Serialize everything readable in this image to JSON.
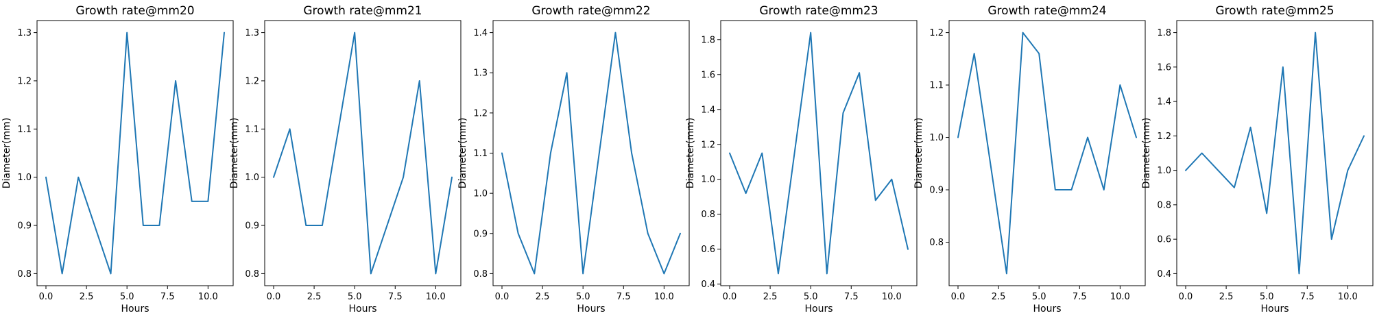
{
  "chart_data": [
    {
      "type": "line",
      "title": "Growth rate@mm20",
      "xlabel": "Hours",
      "ylabel": "Diameter(mm)",
      "xlim": [
        -0.55,
        11.55
      ],
      "ylim": [
        0.775,
        1.325
      ],
      "xticks": [
        0,
        2.5,
        5,
        7.5,
        10
      ],
      "xtick_labels": [
        "0.0",
        "2.5",
        "5.0",
        "7.5",
        "10.0"
      ],
      "yticks": [
        0.8,
        0.9,
        1.0,
        1.1,
        1.2,
        1.3
      ],
      "ytick_labels": [
        "0.8",
        "0.9",
        "1.0",
        "1.1",
        "1.2",
        "1.3"
      ],
      "x": [
        0,
        1,
        2,
        3,
        4,
        5,
        6,
        7,
        8,
        9,
        10,
        11
      ],
      "values": [
        1.0,
        0.8,
        1.0,
        0.9,
        0.8,
        1.3,
        0.9,
        0.9,
        1.2,
        0.95,
        0.95,
        1.3
      ],
      "grid": false,
      "color": "#1f77b4"
    },
    {
      "type": "line",
      "title": "Growth rate@mm21",
      "xlabel": "Hours",
      "ylabel": "Diameter(mm)",
      "xlim": [
        -0.55,
        11.55
      ],
      "ylim": [
        0.775,
        1.325
      ],
      "xticks": [
        0,
        2.5,
        5,
        7.5,
        10
      ],
      "xtick_labels": [
        "0.0",
        "2.5",
        "5.0",
        "7.5",
        "10.0"
      ],
      "yticks": [
        0.8,
        0.9,
        1.0,
        1.1,
        1.2,
        1.3
      ],
      "ytick_labels": [
        "0.8",
        "0.9",
        "1.0",
        "1.1",
        "1.2",
        "1.3"
      ],
      "x": [
        0,
        1,
        2,
        3,
        4,
        5,
        6,
        7,
        8,
        9,
        10,
        11
      ],
      "values": [
        1.0,
        1.1,
        0.9,
        0.9,
        1.1,
        1.3,
        0.8,
        0.9,
        1.0,
        1.2,
        0.8,
        1.0
      ],
      "grid": false,
      "color": "#1f77b4"
    },
    {
      "type": "line",
      "title": "Growth rate@mm22",
      "xlabel": "Hours",
      "ylabel": "Diameter(mm)",
      "xlim": [
        -0.55,
        11.55
      ],
      "ylim": [
        0.77,
        1.43
      ],
      "xticks": [
        0,
        2.5,
        5,
        7.5,
        10
      ],
      "xtick_labels": [
        "0.0",
        "2.5",
        "5.0",
        "7.5",
        "10.0"
      ],
      "yticks": [
        0.8,
        0.9,
        1.0,
        1.1,
        1.2,
        1.3,
        1.4
      ],
      "ytick_labels": [
        "0.8",
        "0.9",
        "1.0",
        "1.1",
        "1.2",
        "1.3",
        "1.4"
      ],
      "x": [
        0,
        1,
        2,
        3,
        4,
        5,
        6,
        7,
        8,
        9,
        10,
        11
      ],
      "values": [
        1.1,
        0.9,
        0.8,
        1.1,
        1.3,
        0.8,
        1.1,
        1.4,
        1.1,
        0.9,
        0.8,
        0.9
      ],
      "grid": false,
      "color": "#1f77b4"
    },
    {
      "type": "line",
      "title": "Growth rate@mm23",
      "xlabel": "Hours",
      "ylabel": "Diameter(mm)",
      "xlim": [
        -0.55,
        11.55
      ],
      "ylim": [
        0.391,
        1.909
      ],
      "xticks": [
        0,
        2.5,
        5,
        7.5,
        10
      ],
      "xtick_labels": [
        "0.0",
        "2.5",
        "5.0",
        "7.5",
        "10.0"
      ],
      "yticks": [
        0.4,
        0.6,
        0.8,
        1.0,
        1.2,
        1.4,
        1.6,
        1.8
      ],
      "ytick_labels": [
        "0.4",
        "0.6",
        "0.8",
        "1.0",
        "1.2",
        "1.4",
        "1.6",
        "1.8"
      ],
      "x": [
        0,
        1,
        2,
        3,
        4,
        5,
        6,
        7,
        8,
        9,
        10,
        11
      ],
      "values": [
        1.15,
        0.92,
        1.15,
        0.46,
        1.15,
        1.84,
        0.46,
        1.38,
        1.61,
        0.88,
        1.0,
        0.6
      ],
      "grid": false,
      "color": "#1f77b4"
    },
    {
      "type": "line",
      "title": "Growth rate@mm24",
      "xlabel": "Hours",
      "ylabel": "Diameter(mm)",
      "xlim": [
        -0.55,
        11.55
      ],
      "ylim": [
        0.717,
        1.223
      ],
      "xticks": [
        0,
        2.5,
        5,
        7.5,
        10
      ],
      "xtick_labels": [
        "0.0",
        "2.5",
        "5.0",
        "7.5",
        "10.0"
      ],
      "yticks": [
        0.8,
        0.9,
        1.0,
        1.1,
        1.2
      ],
      "ytick_labels": [
        "0.8",
        "0.9",
        "1.0",
        "1.1",
        "1.2"
      ],
      "x": [
        0,
        1,
        2,
        3,
        4,
        5,
        6,
        7,
        8,
        9,
        10,
        11
      ],
      "values": [
        1.0,
        1.16,
        0.95,
        0.74,
        1.2,
        1.16,
        0.9,
        0.9,
        1.0,
        0.9,
        1.1,
        1.0
      ],
      "grid": false,
      "color": "#1f77b4"
    },
    {
      "type": "line",
      "title": "Growth rate@mm25",
      "xlabel": "Hours",
      "ylabel": "Diameter(mm)",
      "xlim": [
        -0.55,
        11.55
      ],
      "ylim": [
        0.33,
        1.87
      ],
      "xticks": [
        0,
        2.5,
        5,
        7.5,
        10
      ],
      "xtick_labels": [
        "0.0",
        "2.5",
        "5.0",
        "7.5",
        "10.0"
      ],
      "yticks": [
        0.4,
        0.6,
        0.8,
        1.0,
        1.2,
        1.4,
        1.6,
        1.8
      ],
      "ytick_labels": [
        "0.4",
        "0.6",
        "0.8",
        "1.0",
        "1.2",
        "1.4",
        "1.6",
        "1.8"
      ],
      "x": [
        0,
        1,
        2,
        3,
        4,
        5,
        6,
        7,
        8,
        9,
        10,
        11
      ],
      "values": [
        1.0,
        1.1,
        1.0,
        0.9,
        1.25,
        0.75,
        1.6,
        0.4,
        1.8,
        0.6,
        1.0,
        1.2
      ],
      "grid": false,
      "color": "#1f77b4"
    }
  ]
}
